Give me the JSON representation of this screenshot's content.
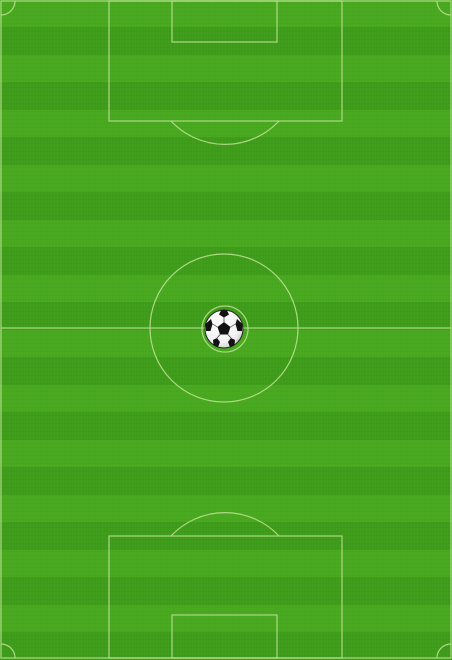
{
  "game": {
    "field": {
      "colors": {
        "stripe_light": "#48a81f",
        "stripe_dark": "#3f9c1a",
        "line": "#b9e08f"
      }
    },
    "ball": {
      "icon": "soccer-ball-icon",
      "colors": {
        "panel_white": "#ffffff",
        "panel_black": "#111111"
      }
    }
  }
}
